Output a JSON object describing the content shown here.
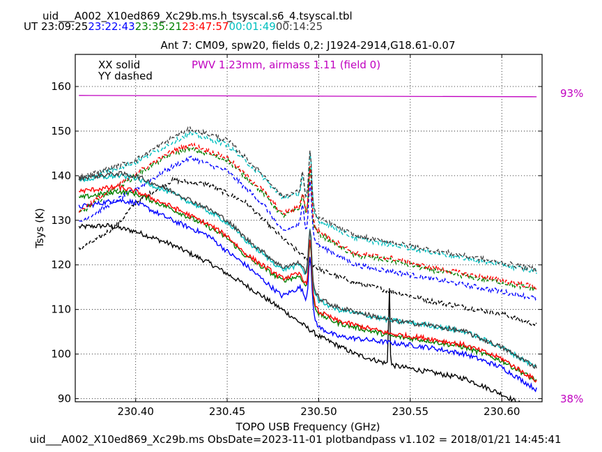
{
  "header": {
    "filename": "uid___A002_X10ed869_Xc29b.ms.h_tsyscal.s6_4.tsyscal.tbl",
    "ut_label": "UT",
    "times": [
      {
        "text": "23:09:25",
        "color": "#000000"
      },
      {
        "text": "23:22:43",
        "color": "#0000ff"
      },
      {
        "text": "23:35:21",
        "color": "#008000"
      },
      {
        "text": "23:47:57",
        "color": "#ff0000"
      },
      {
        "text": "00:01:49",
        "color": "#00bfbf"
      },
      {
        "text": "00:14:25",
        "color": "#404040"
      }
    ]
  },
  "footer": "uid___A002_X10ed869_Xc29b.ms  ObsDate=2023-11-01   plotbandpass v1.102 = 2018/01/21 14:45:41",
  "chart_data": {
    "type": "line",
    "title": "Ant 7: CM09,  spw20,  fields 0,2: J1924-2914,G18.61-0.07",
    "xlabel": "TOPO USB Frequency (GHz)",
    "ylabel": "Tsys (K)",
    "xlim": [
      230.367,
      230.622
    ],
    "ylim": [
      89.3,
      167.2
    ],
    "xticks": [
      "230.40",
      "230.45",
      "230.50",
      "230.55",
      "230.60"
    ],
    "xtick_values": [
      230.4,
      230.45,
      230.5,
      230.55,
      230.6
    ],
    "yticks": [
      "90",
      "100",
      "110",
      "120",
      "130",
      "140",
      "150",
      "160"
    ],
    "ytick_values": [
      90,
      100,
      110,
      120,
      130,
      140,
      150,
      160
    ],
    "grid": true,
    "legend": {
      "xx": "XX solid",
      "yy": "YY dashed",
      "placement": "top-left"
    },
    "pwv_text": "PWV 1.23mm, airmass 1.11 (field 0)",
    "pwv_color": "#c000c0",
    "transmission": {
      "color": "#c000c0",
      "top_label": "93%",
      "bottom_label": "38%",
      "line_start_k": 158.0,
      "line_end_k": 157.7
    },
    "freq_start": 230.369,
    "freq_end": 230.619,
    "spikes": [
      {
        "f": 230.4913,
        "w": 0.0011
      },
      {
        "f": 230.4953,
        "w": 0.0012
      },
      {
        "f": 230.5385,
        "w": 0.0005
      }
    ],
    "series": [
      {
        "color": "#000000",
        "style": "solid",
        "curve": [
          [
            230.369,
            128.5
          ],
          [
            230.385,
            128.8
          ],
          [
            230.4,
            127.5
          ],
          [
            230.42,
            124.5
          ],
          [
            230.44,
            120.5
          ],
          [
            230.46,
            115.5
          ],
          [
            230.48,
            110
          ],
          [
            230.5,
            104
          ],
          [
            230.52,
            100
          ],
          [
            230.54,
            97.5
          ],
          [
            230.56,
            96
          ],
          [
            230.58,
            94.5
          ],
          [
            230.6,
            91
          ],
          [
            230.619,
            87
          ]
        ],
        "spike_amps": [
          0,
          0,
          19
        ]
      },
      {
        "color": "#000000",
        "style": "dashed",
        "curve": [
          [
            230.369,
            123.5
          ],
          [
            230.38,
            126
          ],
          [
            230.39,
            129
          ],
          [
            230.4,
            134
          ],
          [
            230.42,
            139
          ],
          [
            230.44,
            138
          ],
          [
            230.46,
            134
          ],
          [
            230.48,
            126
          ],
          [
            230.5,
            119
          ],
          [
            230.52,
            116
          ],
          [
            230.54,
            114
          ],
          [
            230.56,
            112
          ],
          [
            230.58,
            110.5
          ],
          [
            230.6,
            109
          ],
          [
            230.619,
            106.5
          ]
        ],
        "spike_amps": [
          0,
          0,
          0
        ]
      },
      {
        "color": "#0000ff",
        "style": "solid",
        "curve": [
          [
            230.369,
            133
          ],
          [
            230.39,
            134.5
          ],
          [
            230.4,
            134
          ],
          [
            230.42,
            130
          ],
          [
            230.44,
            126.5
          ],
          [
            230.45,
            123
          ],
          [
            230.46,
            120
          ],
          [
            230.48,
            113
          ],
          [
            230.49,
            115
          ],
          [
            230.5,
            106
          ],
          [
            230.51,
            104
          ],
          [
            230.54,
            102.5
          ],
          [
            230.56,
            101.5
          ],
          [
            230.58,
            100
          ],
          [
            230.6,
            97
          ],
          [
            230.619,
            92
          ]
        ],
        "spike_amps": [
          0,
          12,
          0
        ]
      },
      {
        "color": "#0000ff",
        "style": "dashed",
        "curve": [
          [
            230.369,
            129.5
          ],
          [
            230.4,
            137
          ],
          [
            230.42,
            142
          ],
          [
            230.43,
            144
          ],
          [
            230.45,
            141
          ],
          [
            230.47,
            133.5
          ],
          [
            230.48,
            127.5
          ],
          [
            230.49,
            129
          ],
          [
            230.5,
            124.5
          ],
          [
            230.52,
            120
          ],
          [
            230.54,
            118.5
          ],
          [
            230.56,
            117
          ],
          [
            230.58,
            115.5
          ],
          [
            230.6,
            114
          ],
          [
            230.619,
            112.5
          ]
        ],
        "spike_amps": [
          5,
          12,
          0
        ]
      },
      {
        "color": "#008000",
        "style": "solid",
        "curve": [
          [
            230.369,
            135
          ],
          [
            230.39,
            136.5
          ],
          [
            230.4,
            136
          ],
          [
            230.42,
            132.5
          ],
          [
            230.44,
            128.5
          ],
          [
            230.45,
            126
          ],
          [
            230.46,
            122
          ],
          [
            230.48,
            116.5
          ],
          [
            230.49,
            117.5
          ],
          [
            230.5,
            109
          ],
          [
            230.51,
            107
          ],
          [
            230.54,
            104
          ],
          [
            230.56,
            103
          ],
          [
            230.58,
            101.5
          ],
          [
            230.6,
            98.5
          ],
          [
            230.619,
            94
          ]
        ],
        "spike_amps": [
          0,
          12,
          0
        ]
      },
      {
        "color": "#008000",
        "style": "dashed",
        "curve": [
          [
            230.369,
            131.5
          ],
          [
            230.4,
            140
          ],
          [
            230.42,
            145
          ],
          [
            230.43,
            146
          ],
          [
            230.45,
            143.5
          ],
          [
            230.47,
            136
          ],
          [
            230.48,
            131
          ],
          [
            230.49,
            132.5
          ],
          [
            230.5,
            127
          ],
          [
            230.52,
            122
          ],
          [
            230.54,
            121
          ],
          [
            230.56,
            119
          ],
          [
            230.58,
            117.5
          ],
          [
            230.6,
            116
          ],
          [
            230.619,
            114.5
          ]
        ],
        "spike_amps": [
          4,
          12,
          0
        ]
      },
      {
        "color": "#ff0000",
        "style": "solid",
        "curve": [
          [
            230.369,
            136.5
          ],
          [
            230.39,
            137.5
          ],
          [
            230.4,
            136.5
          ],
          [
            230.42,
            133
          ],
          [
            230.44,
            129
          ],
          [
            230.45,
            126.5
          ],
          [
            230.46,
            122.5
          ],
          [
            230.48,
            117
          ],
          [
            230.49,
            118
          ],
          [
            230.5,
            109.5
          ],
          [
            230.51,
            107.5
          ],
          [
            230.54,
            104.5
          ],
          [
            230.56,
            103.5
          ],
          [
            230.58,
            102
          ],
          [
            230.6,
            99
          ],
          [
            230.619,
            94
          ]
        ],
        "spike_amps": [
          0,
          12,
          0
        ]
      },
      {
        "color": "#ff0000",
        "style": "dashed",
        "curve": [
          [
            230.369,
            132
          ],
          [
            230.4,
            140.5
          ],
          [
            230.42,
            145.5
          ],
          [
            230.43,
            147
          ],
          [
            230.45,
            144
          ],
          [
            230.47,
            136.5
          ],
          [
            230.48,
            131.5
          ],
          [
            230.49,
            133
          ],
          [
            230.5,
            127.5
          ],
          [
            230.52,
            122.5
          ],
          [
            230.54,
            121.5
          ],
          [
            230.56,
            119.5
          ],
          [
            230.58,
            118
          ],
          [
            230.6,
            116.5
          ],
          [
            230.619,
            115
          ]
        ],
        "spike_amps": [
          4,
          12,
          0
        ]
      },
      {
        "color": "#00bfbf",
        "style": "solid",
        "curve": [
          [
            230.369,
            139
          ],
          [
            230.39,
            140
          ],
          [
            230.4,
            139.5
          ],
          [
            230.42,
            136
          ],
          [
            230.44,
            132
          ],
          [
            230.45,
            129.5
          ],
          [
            230.46,
            125.5
          ],
          [
            230.48,
            119
          ],
          [
            230.49,
            120
          ],
          [
            230.5,
            112
          ],
          [
            230.51,
            110
          ],
          [
            230.54,
            107.5
          ],
          [
            230.56,
            106.5
          ],
          [
            230.58,
            105
          ],
          [
            230.6,
            101.5
          ],
          [
            230.619,
            97
          ]
        ],
        "spike_amps": [
          0,
          12,
          0
        ]
      },
      {
        "color": "#00bfbf",
        "style": "dashed",
        "curve": [
          [
            230.369,
            139
          ],
          [
            230.4,
            143
          ],
          [
            230.42,
            147.5
          ],
          [
            230.43,
            149.5
          ],
          [
            230.45,
            147
          ],
          [
            230.47,
            139.5
          ],
          [
            230.48,
            135
          ],
          [
            230.49,
            136
          ],
          [
            230.5,
            130
          ],
          [
            230.52,
            126
          ],
          [
            230.54,
            124.5
          ],
          [
            230.56,
            123
          ],
          [
            230.58,
            121.5
          ],
          [
            230.6,
            120
          ],
          [
            230.619,
            118.5
          ]
        ],
        "spike_amps": [
          5,
          12,
          0
        ]
      },
      {
        "color": "#404040",
        "style": "solid",
        "curve": [
          [
            230.369,
            139.5
          ],
          [
            230.39,
            140.5
          ],
          [
            230.4,
            140
          ],
          [
            230.42,
            136.5
          ],
          [
            230.44,
            132.5
          ],
          [
            230.45,
            130
          ],
          [
            230.46,
            126
          ],
          [
            230.48,
            119.5
          ],
          [
            230.49,
            120.5
          ],
          [
            230.5,
            112.5
          ],
          [
            230.51,
            110.5
          ],
          [
            230.54,
            107.5
          ],
          [
            230.56,
            106.5
          ],
          [
            230.58,
            105
          ],
          [
            230.6,
            101.5
          ],
          [
            230.619,
            97
          ]
        ],
        "spike_amps": [
          0,
          12,
          0
        ]
      },
      {
        "color": "#404040",
        "style": "dashed",
        "curve": [
          [
            230.369,
            139.5
          ],
          [
            230.4,
            143.5
          ],
          [
            230.42,
            148.5
          ],
          [
            230.43,
            150.5
          ],
          [
            230.45,
            148
          ],
          [
            230.47,
            140
          ],
          [
            230.48,
            135.5
          ],
          [
            230.49,
            136.5
          ],
          [
            230.5,
            130.5
          ],
          [
            230.52,
            126.5
          ],
          [
            230.54,
            125
          ],
          [
            230.56,
            123.5
          ],
          [
            230.58,
            122
          ],
          [
            230.6,
            120.5
          ],
          [
            230.619,
            119
          ]
        ],
        "spike_amps": [
          5,
          12,
          0
        ]
      }
    ]
  }
}
